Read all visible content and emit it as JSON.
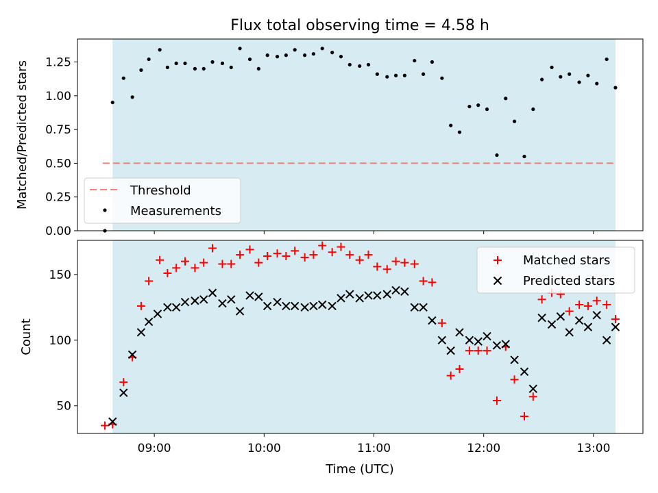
{
  "chart_data": {
    "title": "Flux total observing time = 4.58 h",
    "shaded_region": {
      "x_start": 8.62,
      "x_end": 13.2,
      "color": "#add8e6"
    },
    "xlabel": "Time (UTC)",
    "xlim": [
      8.3,
      13.45
    ],
    "xticks": [
      9,
      10,
      11,
      12,
      13
    ],
    "xtick_labels": [
      "09:00",
      "10:00",
      "11:00",
      "12:00",
      "13:00"
    ],
    "top": {
      "type": "scatter",
      "ylabel": "Matched/Predicted stars",
      "ylim": [
        0,
        1.42
      ],
      "yticks": [
        0,
        0.25,
        0.5,
        0.75,
        1.0,
        1.25
      ],
      "ytick_labels": [
        "0.00",
        "0.25",
        "0.50",
        "0.75",
        "1.00",
        "1.25"
      ],
      "threshold": {
        "name": "Threshold",
        "y": 0.5,
        "x": [
          8.53,
          13.2
        ],
        "color": "#f08080"
      },
      "measurements": {
        "name": "Measurements",
        "color": "#000000",
        "x": [
          8.55,
          8.62,
          8.72,
          8.8,
          8.88,
          8.95,
          9.05,
          9.12,
          9.2,
          9.28,
          9.37,
          9.45,
          9.53,
          9.62,
          9.7,
          9.78,
          9.87,
          9.95,
          10.03,
          10.12,
          10.2,
          10.28,
          10.37,
          10.45,
          10.53,
          10.62,
          10.7,
          10.78,
          10.87,
          10.95,
          11.03,
          11.12,
          11.2,
          11.28,
          11.37,
          11.45,
          11.53,
          11.62,
          11.7,
          11.78,
          11.87,
          11.95,
          12.03,
          12.12,
          12.2,
          12.28,
          12.37,
          12.45,
          12.53,
          12.62,
          12.7,
          12.78,
          12.87,
          12.95,
          13.03,
          13.12,
          13.2
        ],
        "y": [
          0.0,
          0.95,
          1.13,
          0.99,
          1.19,
          1.27,
          1.34,
          1.21,
          1.24,
          1.24,
          1.2,
          1.2,
          1.25,
          1.24,
          1.21,
          1.35,
          1.27,
          1.2,
          1.3,
          1.29,
          1.3,
          1.34,
          1.3,
          1.31,
          1.35,
          1.32,
          1.29,
          1.23,
          1.22,
          1.23,
          1.16,
          1.14,
          1.15,
          1.15,
          1.26,
          1.16,
          1.25,
          1.13,
          0.78,
          0.73,
          0.92,
          0.93,
          0.9,
          0.56,
          0.98,
          0.81,
          0.55,
          0.9,
          1.12,
          1.21,
          1.14,
          1.16,
          1.1,
          1.15,
          1.09,
          1.27,
          1.06
        ]
      },
      "legend": {
        "placement": "lower-left",
        "entries": [
          "Threshold",
          "Measurements"
        ]
      }
    },
    "bottom": {
      "type": "scatter",
      "ylabel": "Count",
      "ylim": [
        29,
        176
      ],
      "yticks": [
        50,
        100,
        150
      ],
      "ytick_labels": [
        "50",
        "100",
        "150"
      ],
      "matched": {
        "name": "Matched stars",
        "color": "#ff0000",
        "x": [
          8.55,
          8.62,
          8.72,
          8.8,
          8.88,
          8.95,
          9.05,
          9.12,
          9.2,
          9.28,
          9.37,
          9.45,
          9.53,
          9.62,
          9.7,
          9.78,
          9.87,
          9.95,
          10.03,
          10.12,
          10.2,
          10.28,
          10.37,
          10.45,
          10.53,
          10.62,
          10.7,
          10.78,
          10.87,
          10.95,
          11.03,
          11.12,
          11.2,
          11.28,
          11.37,
          11.45,
          11.53,
          11.62,
          11.7,
          11.78,
          11.87,
          11.95,
          12.03,
          12.12,
          12.2,
          12.28,
          12.37,
          12.45,
          12.53,
          12.62,
          12.7,
          12.78,
          12.87,
          12.95,
          13.03,
          13.12,
          13.2
        ],
        "y": [
          35,
          36,
          68,
          87,
          126,
          145,
          161,
          151,
          155,
          160,
          155,
          159,
          170,
          158,
          158,
          165,
          169,
          159,
          164,
          166,
          164,
          168,
          163,
          165,
          172,
          167,
          171,
          165,
          161,
          165,
          156,
          154,
          160,
          159,
          158,
          145,
          144,
          113,
          73,
          78,
          92,
          92,
          92,
          54,
          95,
          70,
          42,
          57,
          131,
          136,
          135,
          122,
          127,
          126,
          130,
          127,
          116
        ]
      },
      "predicted": {
        "name": "Predicted stars",
        "color": "#000000",
        "x": [
          8.62,
          8.72,
          8.8,
          8.88,
          8.95,
          9.03,
          9.12,
          9.2,
          9.28,
          9.37,
          9.45,
          9.53,
          9.62,
          9.7,
          9.78,
          9.87,
          9.95,
          10.03,
          10.12,
          10.2,
          10.28,
          10.37,
          10.45,
          10.53,
          10.62,
          10.7,
          10.78,
          10.87,
          10.95,
          11.03,
          11.12,
          11.2,
          11.28,
          11.37,
          11.45,
          11.53,
          11.62,
          11.7,
          11.78,
          11.87,
          11.95,
          12.03,
          12.12,
          12.2,
          12.28,
          12.37,
          12.45,
          12.53,
          12.62,
          12.7,
          12.78,
          12.87,
          12.95,
          13.03,
          13.12,
          13.2
        ],
        "y": [
          38,
          60,
          89,
          106,
          114,
          120,
          125,
          125,
          129,
          130,
          131,
          136,
          128,
          131,
          122,
          134,
          133,
          126,
          129,
          126,
          126,
          125,
          126,
          127,
          126,
          132,
          135,
          132,
          134,
          134,
          135,
          138,
          137,
          125,
          125,
          115,
          100,
          92,
          106,
          100,
          99,
          103,
          96,
          97,
          85,
          76,
          63,
          117,
          112,
          118,
          106,
          115,
          110,
          119,
          100,
          110
        ]
      },
      "legend": {
        "placement": "upper-right",
        "entries": [
          "Matched stars",
          "Predicted stars"
        ]
      }
    }
  }
}
